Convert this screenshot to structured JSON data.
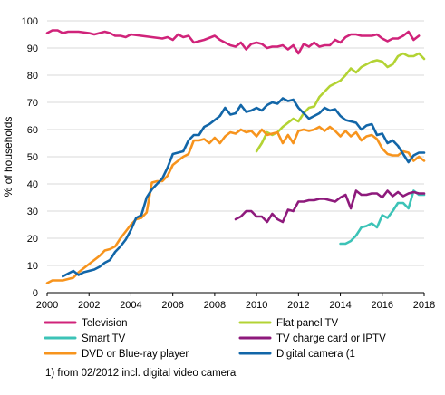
{
  "chart_data": {
    "type": "line",
    "title": "",
    "xlabel": "",
    "ylabel": "% of households",
    "xlim": [
      2000,
      2018
    ],
    "ylim": [
      0,
      100
    ],
    "x_ticks": [
      2000,
      2002,
      2004,
      2006,
      2008,
      2010,
      2012,
      2014,
      2016,
      2018
    ],
    "y_ticks": [
      0,
      10,
      20,
      30,
      40,
      50,
      60,
      70,
      80,
      90,
      100
    ],
    "grid": "horizontal",
    "legend_position": "bottom",
    "footnote": "1) from 02/2012 incl. digital video camera",
    "series": [
      {
        "name": "Television",
        "color": "#d0237a",
        "x": [
          2000.0,
          2000.25,
          2000.5,
          2000.75,
          2001.0,
          2001.5,
          2002.0,
          2002.25,
          2002.5,
          2002.75,
          2003.0,
          2003.25,
          2003.5,
          2003.75,
          2004.0,
          2004.5,
          2005.0,
          2005.5,
          2005.75,
          2006.0,
          2006.25,
          2006.5,
          2006.75,
          2007.0,
          2007.5,
          2008.0,
          2008.25,
          2008.5,
          2008.75,
          2009.0,
          2009.25,
          2009.5,
          2009.75,
          2010.0,
          2010.25,
          2010.5,
          2010.75,
          2011.0,
          2011.25,
          2011.5,
          2011.75,
          2012.0,
          2012.25,
          2012.5,
          2012.75,
          2013.0,
          2013.25,
          2013.5,
          2013.75,
          2014.0,
          2014.25,
          2014.5,
          2014.75,
          2015.0,
          2015.25,
          2015.5,
          2015.75,
          2016.0,
          2016.25,
          2016.5,
          2016.75,
          2017.0,
          2017.25,
          2017.5,
          2017.75
        ],
        "values": [
          95.5,
          96.5,
          96.5,
          95.5,
          96,
          96,
          95.5,
          95,
          95.5,
          96,
          95.5,
          94.5,
          94.5,
          94,
          95,
          94.5,
          94,
          93.5,
          94,
          93,
          95,
          94,
          94.5,
          92,
          93,
          94.5,
          93,
          92,
          91,
          90.5,
          92,
          89.5,
          91.5,
          92,
          91.5,
          90,
          90.5,
          90.5,
          91,
          89.5,
          91,
          88,
          91.5,
          90.5,
          92,
          90.5,
          91,
          91,
          93,
          92,
          94,
          95,
          95,
          94.5,
          94.5,
          94.5,
          95,
          93.5,
          92.5,
          93.5,
          93.5,
          94.5,
          96,
          93,
          94.5
        ]
      },
      {
        "name": "Flat panel TV",
        "color": "#b3d334",
        "x": [
          2010.0,
          2010.25,
          2010.5,
          2010.75,
          2011.0,
          2011.25,
          2011.5,
          2011.75,
          2012.0,
          2012.25,
          2012.5,
          2012.75,
          2013.0,
          2013.25,
          2013.5,
          2013.75,
          2014.0,
          2014.25,
          2014.5,
          2014.75,
          2015.0,
          2015.25,
          2015.5,
          2015.75,
          2016.0,
          2016.25,
          2016.5,
          2016.75,
          2017.0,
          2017.25,
          2017.5,
          2017.75,
          2018.0
        ],
        "values": [
          52,
          55,
          59,
          58,
          59,
          61,
          62.5,
          64,
          63,
          66,
          68,
          68.5,
          72,
          74,
          76,
          77,
          78,
          80,
          82.5,
          81,
          83,
          84,
          85,
          85.5,
          85,
          83,
          84,
          87,
          88,
          87,
          87,
          88,
          86
        ]
      },
      {
        "name": "Smart TV",
        "color": "#3cc3b7",
        "x": [
          2014.0,
          2014.25,
          2014.5,
          2014.75,
          2015.0,
          2015.25,
          2015.5,
          2015.75,
          2016.0,
          2016.25,
          2016.5,
          2016.75,
          2017.0,
          2017.25,
          2017.5,
          2017.75,
          2018.0
        ],
        "values": [
          18,
          18,
          19,
          21,
          24,
          24.5,
          25.5,
          24,
          28.5,
          27.5,
          30,
          33,
          33,
          31,
          37.5,
          36,
          36
        ]
      },
      {
        "name": "TV charge card or IPTV",
        "color": "#8e1a7c",
        "x": [
          2009.0,
          2009.25,
          2009.5,
          2009.75,
          2010.0,
          2010.25,
          2010.5,
          2010.75,
          2011.0,
          2011.25,
          2011.5,
          2011.75,
          2012.0,
          2012.25,
          2012.5,
          2012.75,
          2013.0,
          2013.25,
          2013.5,
          2013.75,
          2014.0,
          2014.25,
          2014.5,
          2014.75,
          2015.0,
          2015.25,
          2015.5,
          2015.75,
          2016.0,
          2016.25,
          2016.5,
          2016.75,
          2017.0,
          2017.25,
          2017.5,
          2017.75,
          2018.0
        ],
        "values": [
          27,
          28,
          30,
          30,
          28,
          28,
          26,
          29,
          27,
          26,
          30.5,
          30,
          33.5,
          33.5,
          34,
          34,
          34.5,
          34.5,
          34,
          33.5,
          35,
          36,
          31,
          37.5,
          36,
          36,
          36.5,
          36.5,
          35,
          37.5,
          35.5,
          37,
          35.5,
          36.5,
          37,
          36.5,
          36.5
        ]
      },
      {
        "name": "DVD or Blue-ray player",
        "color": "#f7941d",
        "x": [
          2000.0,
          2000.25,
          2000.5,
          2000.75,
          2001.0,
          2001.25,
          2001.5,
          2001.75,
          2002.0,
          2002.25,
          2002.5,
          2002.75,
          2003.0,
          2003.25,
          2003.5,
          2003.75,
          2004.0,
          2004.25,
          2004.5,
          2004.75,
          2005.0,
          2005.25,
          2005.5,
          2005.75,
          2006.0,
          2006.25,
          2006.5,
          2006.75,
          2007.0,
          2007.25,
          2007.5,
          2007.75,
          2008.0,
          2008.25,
          2008.5,
          2008.75,
          2009.0,
          2009.25,
          2009.5,
          2009.75,
          2010.0,
          2010.25,
          2010.5,
          2010.75,
          2011.0,
          2011.25,
          2011.5,
          2011.75,
          2012.0,
          2012.25,
          2012.5,
          2012.75,
          2013.0,
          2013.25,
          2013.5,
          2013.75,
          2014.0,
          2014.25,
          2014.5,
          2014.75,
          2015.0,
          2015.25,
          2015.5,
          2015.75,
          2016.0,
          2016.25,
          2016.5,
          2016.75,
          2017.0,
          2017.25,
          2017.5,
          2017.75,
          2018.0
        ],
        "values": [
          3.5,
          4.5,
          4.5,
          4.5,
          5,
          5.5,
          7.5,
          9,
          10.5,
          12,
          13.5,
          15.5,
          16,
          17,
          20,
          22.5,
          25,
          27,
          27.5,
          29.5,
          40.5,
          41,
          41,
          43,
          47,
          48.5,
          50,
          51,
          56,
          56,
          56.5,
          55,
          57,
          55,
          57.5,
          59,
          58.5,
          60,
          59,
          59.5,
          57.5,
          60,
          58,
          58.5,
          59,
          55,
          58,
          55,
          59.5,
          60,
          59.5,
          60,
          61,
          59.5,
          61,
          59.5,
          57.5,
          59.5,
          57.5,
          59,
          56,
          57.5,
          58,
          56.5,
          53,
          51,
          50.5,
          50.5,
          52,
          51.5,
          48.5,
          50,
          48.5
        ]
      },
      {
        "name": "Digital camera (1",
        "color": "#1266a8",
        "x": [
          2000.75,
          2001.0,
          2001.25,
          2001.5,
          2001.75,
          2002.0,
          2002.25,
          2002.5,
          2002.75,
          2003.0,
          2003.25,
          2003.5,
          2003.75,
          2004.0,
          2004.25,
          2004.5,
          2004.75,
          2005.0,
          2005.25,
          2005.5,
          2005.75,
          2006.0,
          2006.25,
          2006.5,
          2006.75,
          2007.0,
          2007.25,
          2007.5,
          2007.75,
          2008.0,
          2008.25,
          2008.5,
          2008.75,
          2009.0,
          2009.25,
          2009.5,
          2009.75,
          2010.0,
          2010.25,
          2010.5,
          2010.75,
          2011.0,
          2011.25,
          2011.5,
          2011.75,
          2012.0,
          2012.25,
          2012.5,
          2012.75,
          2013.0,
          2013.25,
          2013.5,
          2013.75,
          2014.0,
          2014.25,
          2014.5,
          2014.75,
          2015.0,
          2015.25,
          2015.5,
          2015.75,
          2016.0,
          2016.25,
          2016.5,
          2016.75,
          2017.0,
          2017.25,
          2017.5,
          2017.75,
          2018.0
        ],
        "values": [
          6,
          7,
          8,
          6.5,
          7.5,
          8,
          8.5,
          9.5,
          11,
          12,
          15,
          17,
          19.5,
          23,
          27.5,
          28.5,
          35,
          38,
          40,
          42,
          46,
          51,
          51.5,
          52,
          56,
          58,
          58,
          61,
          62,
          63.5,
          65,
          68,
          65.5,
          66,
          69,
          66.5,
          67,
          68,
          67,
          69,
          70,
          69.5,
          71.5,
          70.5,
          71,
          68,
          66,
          64,
          65,
          66,
          68,
          67,
          67.5,
          65,
          63.5,
          63,
          62.5,
          60,
          61.5,
          62,
          58,
          58.5,
          55,
          56,
          54,
          51,
          48,
          50.5,
          51.5,
          51.5
        ]
      }
    ]
  }
}
